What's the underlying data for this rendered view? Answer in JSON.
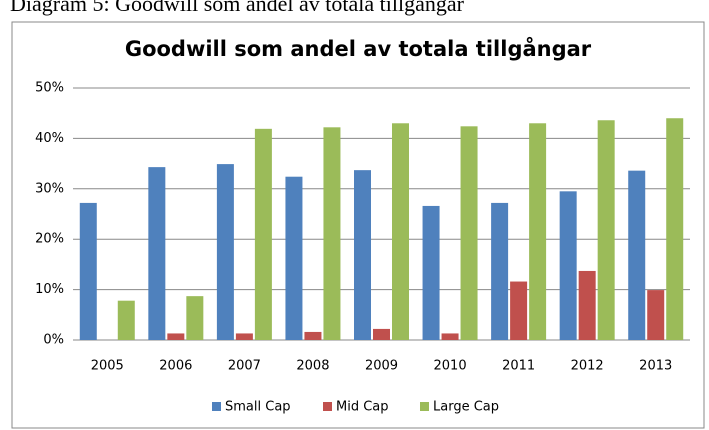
{
  "chart_data": {
    "type": "bar",
    "caption": "Diagram 5: Goodwill som andel av totala tillgångar",
    "title": "Goodwill som andel av totala tillgångar",
    "categories": [
      "2005",
      "2006",
      "2007",
      "2008",
      "2009",
      "2010",
      "2011",
      "2012",
      "2013"
    ],
    "series": [
      {
        "name": "Small Cap",
        "color": "#4f81bd",
        "values": [
          27.2,
          34.3,
          34.9,
          32.4,
          33.7,
          26.6,
          27.2,
          29.5,
          33.6
        ]
      },
      {
        "name": "Mid Cap",
        "color": "#c0504d",
        "values": [
          0,
          1.3,
          1.3,
          1.6,
          2.2,
          1.3,
          11.6,
          13.7,
          9.9
        ]
      },
      {
        "name": "Large Cap",
        "color": "#9bbb59",
        "values": [
          7.8,
          8.7,
          41.9,
          42.2,
          43.0,
          42.4,
          43.0,
          43.6,
          44.0
        ]
      }
    ],
    "ylim": [
      0,
      50
    ],
    "yticks": [
      {
        "value": 0,
        "label": "0%"
      },
      {
        "value": 10,
        "label": "10%"
      },
      {
        "value": 20,
        "label": "20%"
      },
      {
        "value": 30,
        "label": "30%"
      },
      {
        "value": 40,
        "label": "40%"
      },
      {
        "value": 50,
        "label": "50%"
      }
    ],
    "grid": true,
    "legend": "bottom"
  }
}
